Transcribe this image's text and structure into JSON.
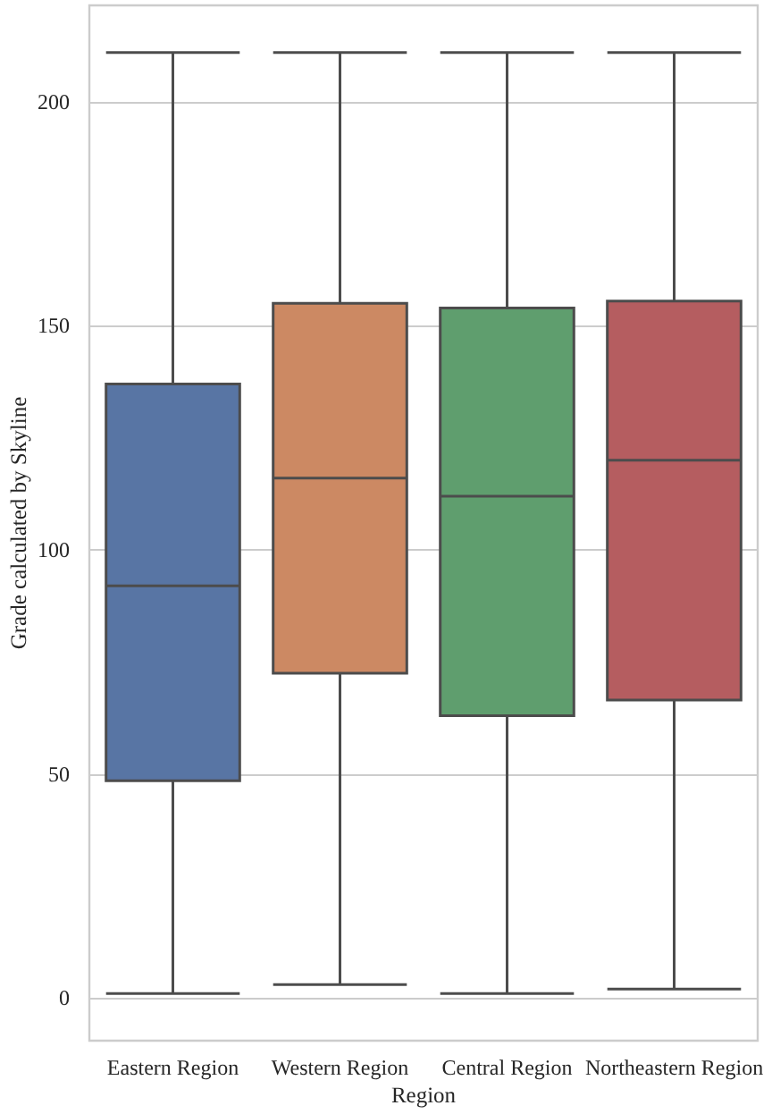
{
  "chart_data": {
    "type": "box",
    "xlabel": "Region",
    "ylabel": "Grade calculated by Skyline",
    "categories": [
      "Eastern Region",
      "Western Region",
      "Central Region",
      "Northeastern Region"
    ],
    "boxes": [
      {
        "low": 1,
        "q1": 48.5,
        "median": 92,
        "q3": 137,
        "high": 211
      },
      {
        "low": 3,
        "q1": 72.5,
        "median": 116,
        "q3": 155,
        "high": 211
      },
      {
        "low": 1,
        "q1": 63,
        "median": 112,
        "q3": 154,
        "high": 211
      },
      {
        "low": 2,
        "q1": 66.5,
        "median": 120,
        "q3": 155.5,
        "high": 211
      }
    ],
    "colors": [
      "#5875a4",
      "#cc8963",
      "#5f9e6e",
      "#b55d60"
    ],
    "ylim": [
      -9.5,
      221.5
    ],
    "yticks": [
      0,
      50,
      100,
      150,
      200
    ],
    "grid": "y"
  }
}
